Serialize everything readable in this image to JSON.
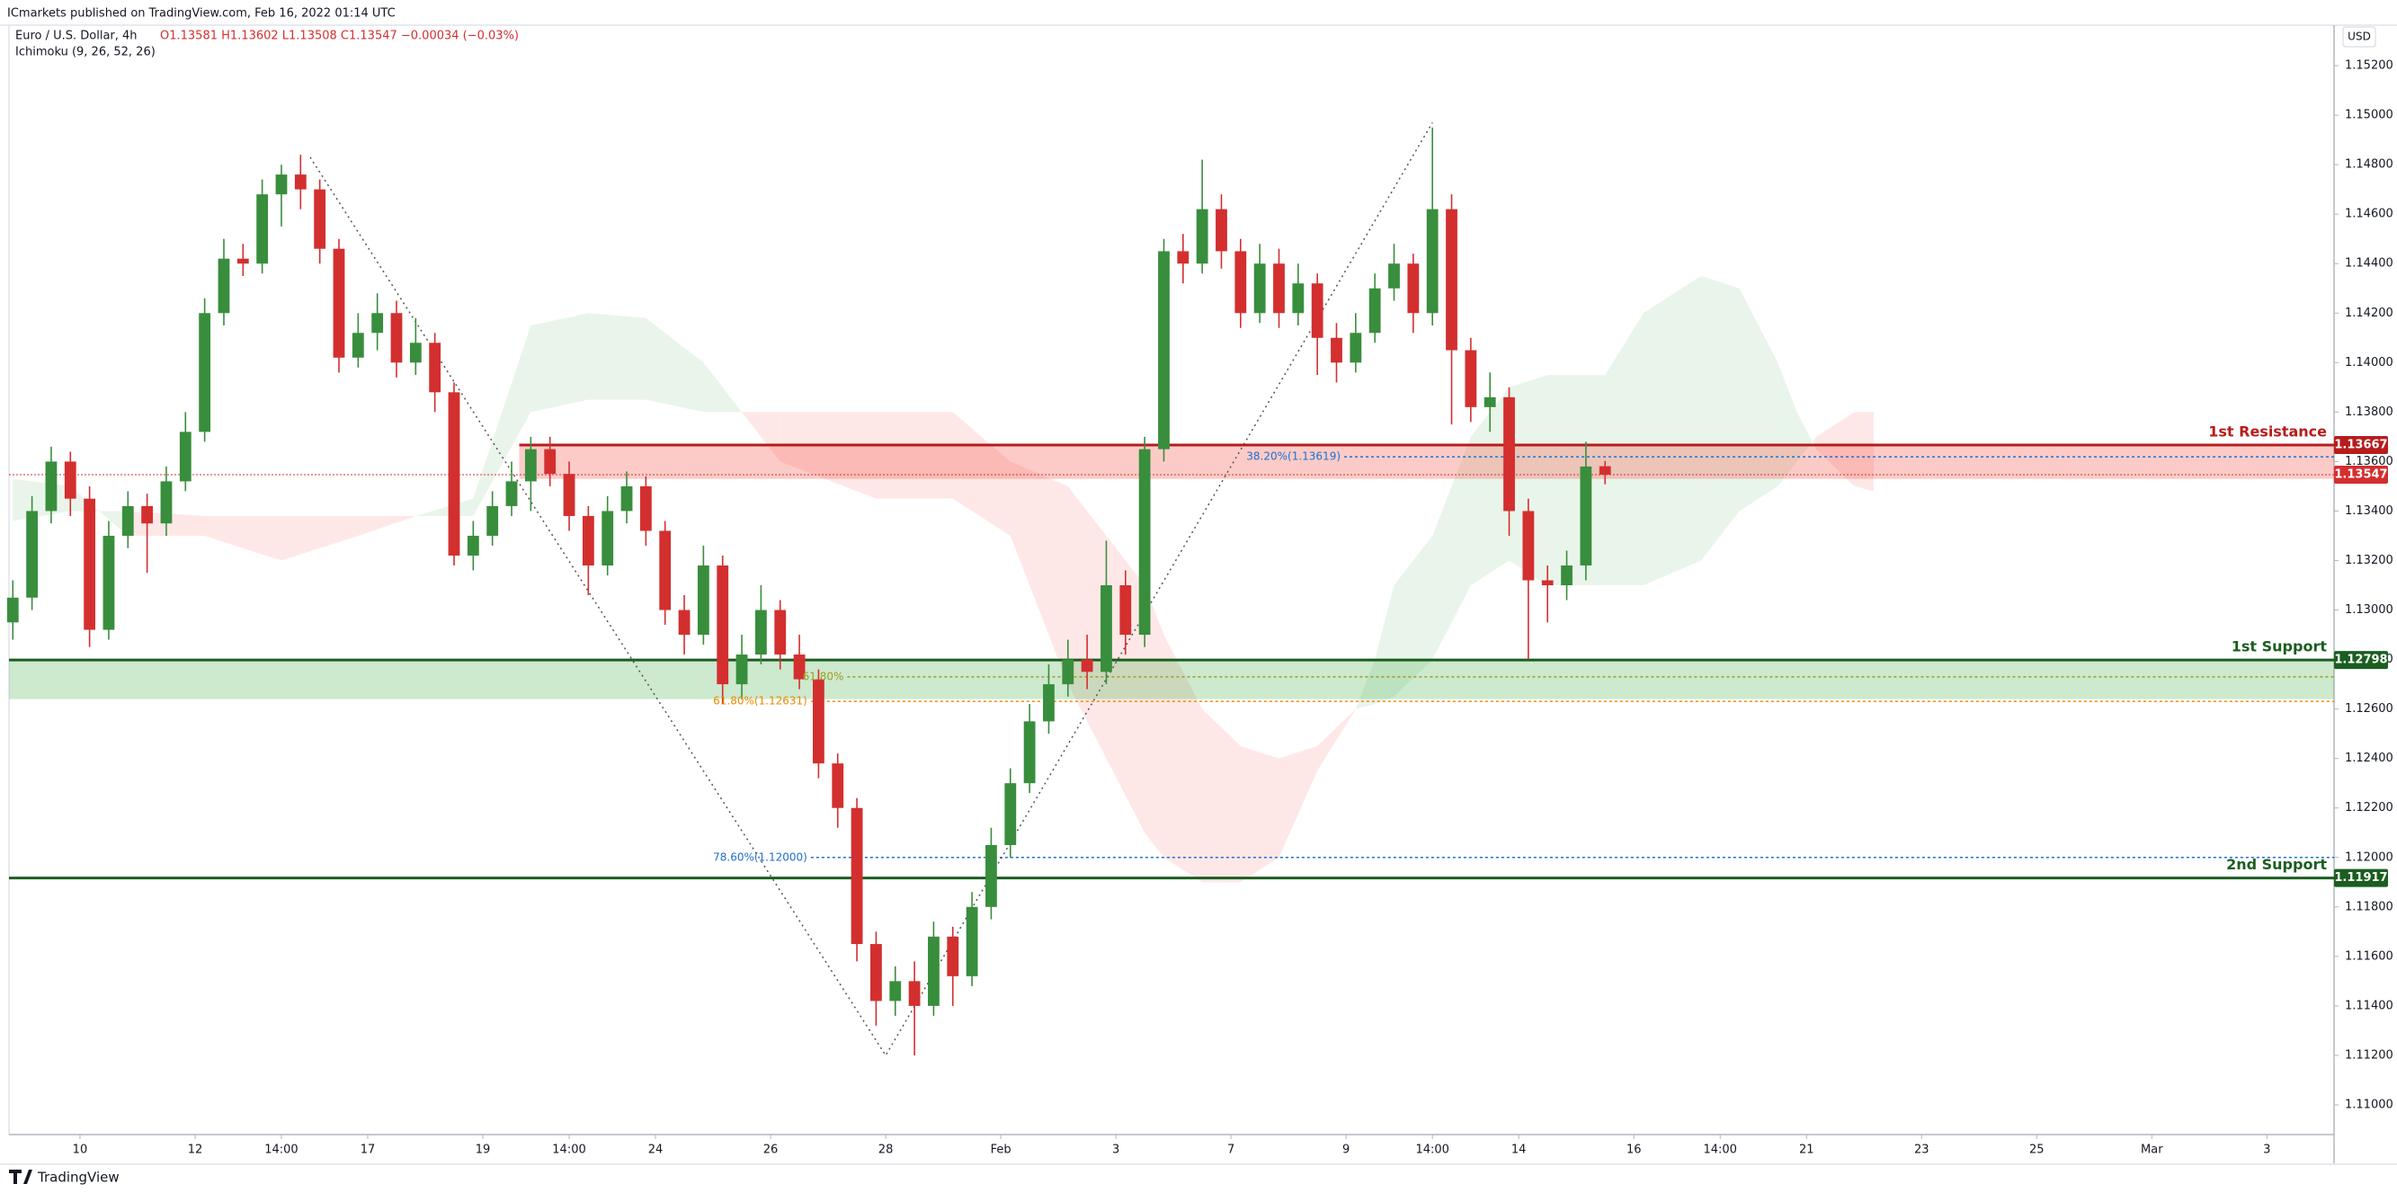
{
  "chart_data": {
    "type": "candlestick",
    "publisher": "ICmarkets published on TradingView.com, Feb 16, 2022 01:14 UTC",
    "symbol": "Euro / U.S. Dollar, 4h",
    "ohlc_text": "O1.13581  H1.13602  L1.13508  C1.13547  −0.00034 (−0.03%)",
    "indicator": "Ichimoku (9, 26, 52, 26)",
    "currency": "USD",
    "brand": "TradingView",
    "up_color": "#388e3c",
    "down_color": "#d32f2f",
    "open": [
      1.1295,
      1.1305,
      1.134,
      1.136,
      1.1345,
      1.1292,
      1.133,
      1.1342,
      1.1335,
      1.1352,
      1.1372,
      1.142,
      1.1442,
      1.144,
      1.1468,
      1.1476,
      1.147,
      1.1446,
      1.1402,
      1.1412,
      1.142,
      1.14,
      1.1408,
      1.1388,
      1.1322,
      1.133,
      1.1342,
      1.1352,
      1.1365,
      1.1355,
      1.1338,
      1.1318,
      1.134,
      1.135,
      1.1332,
      1.13,
      1.129,
      1.1318,
      1.127,
      1.1282,
      1.13,
      1.1282,
      1.1272,
      1.1238,
      1.122,
      1.1165,
      1.1142,
      1.115,
      1.114,
      1.1168,
      1.1152,
      1.118,
      1.1205,
      1.123,
      1.1255,
      1.127,
      1.128,
      1.1275,
      1.131,
      1.129,
      1.1365,
      1.1445,
      1.144,
      1.1462,
      1.1445,
      1.142,
      1.144,
      1.142,
      1.1432,
      1.141,
      1.14,
      1.1412,
      1.143,
      1.144,
      1.142,
      1.1462,
      1.1405,
      1.1382,
      1.1386,
      1.134,
      1.1312,
      1.131,
      1.1318,
      1.13581
    ],
    "high": [
      1.1312,
      1.1346,
      1.1366,
      1.1364,
      1.135,
      1.1336,
      1.1348,
      1.1347,
      1.1358,
      1.138,
      1.1426,
      1.145,
      1.1448,
      1.1474,
      1.148,
      1.1484,
      1.1474,
      1.145,
      1.142,
      1.1428,
      1.1425,
      1.1418,
      1.1412,
      1.1392,
      1.1336,
      1.1348,
      1.136,
      1.137,
      1.137,
      1.136,
      1.1342,
      1.1346,
      1.1356,
      1.1354,
      1.1336,
      1.1306,
      1.1326,
      1.1322,
      1.129,
      1.131,
      1.1304,
      1.129,
      1.1276,
      1.1242,
      1.1224,
      1.117,
      1.1156,
      1.1158,
      1.1174,
      1.1172,
      1.1186,
      1.1212,
      1.1236,
      1.1262,
      1.1278,
      1.1288,
      1.129,
      1.1328,
      1.1316,
      1.137,
      1.145,
      1.1452,
      1.1482,
      1.1468,
      1.145,
      1.1448,
      1.1446,
      1.144,
      1.1436,
      1.1416,
      1.142,
      1.1436,
      1.1448,
      1.1444,
      1.1495,
      1.1468,
      1.141,
      1.1396,
      1.139,
      1.1345,
      1.1318,
      1.1324,
      1.1368,
      1.13602
    ],
    "low": [
      1.1288,
      1.13,
      1.1335,
      1.1338,
      1.1285,
      1.1288,
      1.1325,
      1.1315,
      1.133,
      1.1348,
      1.1368,
      1.1415,
      1.1435,
      1.1436,
      1.1455,
      1.1462,
      1.144,
      1.1396,
      1.1398,
      1.1405,
      1.1394,
      1.1395,
      1.138,
      1.1318,
      1.1316,
      1.1326,
      1.1338,
      1.134,
      1.135,
      1.1332,
      1.1306,
      1.1314,
      1.1335,
      1.1326,
      1.1294,
      1.1282,
      1.1286,
      1.1262,
      1.1264,
      1.1278,
      1.1276,
      1.1268,
      1.1232,
      1.1212,
      1.1158,
      1.1132,
      1.1136,
      1.112,
      1.1136,
      1.114,
      1.1148,
      1.1175,
      1.12,
      1.1226,
      1.125,
      1.1265,
      1.1268,
      1.127,
      1.1282,
      1.1285,
      1.136,
      1.1432,
      1.1436,
      1.1438,
      1.1414,
      1.1416,
      1.1414,
      1.1415,
      1.1395,
      1.1392,
      1.1396,
      1.1408,
      1.1425,
      1.1412,
      1.1415,
      1.1375,
      1.1376,
      1.1372,
      1.133,
      1.128,
      1.1295,
      1.1304,
      1.1312,
      1.13508
    ],
    "close": [
      1.1305,
      1.134,
      1.136,
      1.1345,
      1.1292,
      1.133,
      1.1342,
      1.1335,
      1.1352,
      1.1372,
      1.142,
      1.1442,
      1.144,
      1.1468,
      1.1476,
      1.147,
      1.1446,
      1.1402,
      1.1412,
      1.142,
      1.14,
      1.1408,
      1.1388,
      1.1322,
      1.133,
      1.1342,
      1.1352,
      1.1365,
      1.1355,
      1.1338,
      1.1318,
      1.134,
      1.135,
      1.1332,
      1.13,
      1.129,
      1.1318,
      1.127,
      1.1282,
      1.13,
      1.1282,
      1.1272,
      1.1238,
      1.122,
      1.1165,
      1.1142,
      1.115,
      1.114,
      1.1168,
      1.1152,
      1.118,
      1.1205,
      1.123,
      1.1255,
      1.127,
      1.128,
      1.1275,
      1.131,
      1.129,
      1.1365,
      1.1445,
      1.144,
      1.1462,
      1.1445,
      1.142,
      1.144,
      1.142,
      1.1432,
      1.141,
      1.14,
      1.1412,
      1.143,
      1.144,
      1.142,
      1.1462,
      1.1405,
      1.1382,
      1.1386,
      1.134,
      1.1312,
      1.131,
      1.1318,
      1.1358,
      1.13547
    ],
    "cloud": {
      "x": [
        0,
        3,
        6,
        10,
        14,
        18,
        21,
        24,
        27,
        30,
        33,
        36,
        38,
        40,
        45,
        49,
        52,
        55,
        57,
        59,
        60,
        62,
        64,
        66,
        68,
        70,
        71,
        72,
        74,
        76,
        78,
        80,
        83,
        85,
        88,
        90,
        92,
        93,
        94,
        96,
        97
      ],
      "span_a": [
        1.1353,
        1.135,
        1.133,
        1.133,
        1.132,
        1.133,
        1.1338,
        1.1345,
        1.1415,
        1.142,
        1.1418,
        1.14,
        1.138,
        1.136,
        1.1345,
        1.1345,
        1.133,
        1.127,
        1.124,
        1.121,
        1.12,
        1.119,
        1.119,
        1.12,
        1.1235,
        1.126,
        1.128,
        1.131,
        1.133,
        1.137,
        1.139,
        1.1395,
        1.1395,
        1.142,
        1.1435,
        1.143,
        1.14,
        1.138,
        1.1365,
        1.135,
        1.1348
      ],
      "span_b": [
        1.1336,
        1.134,
        1.134,
        1.1338,
        1.1338,
        1.1338,
        1.1338,
        1.1338,
        1.138,
        1.1385,
        1.1385,
        1.138,
        1.138,
        1.138,
        1.138,
        1.138,
        1.136,
        1.135,
        1.133,
        1.131,
        1.129,
        1.126,
        1.1245,
        1.124,
        1.1245,
        1.126,
        1.1262,
        1.1265,
        1.128,
        1.131,
        1.132,
        1.131,
        1.131,
        1.131,
        1.132,
        1.134,
        1.135,
        1.136,
        1.137,
        1.138,
        1.138
      ]
    },
    "trendline": {
      "x": [
        15.5,
        45.5,
        74
      ],
      "y": [
        1.1483,
        1.112,
        1.1497
      ]
    },
    "zones": [
      {
        "top": 1.13667,
        "bottom": 1.1353,
        "start": 26.4,
        "color": "#f44336"
      },
      {
        "top": 1.12798,
        "bottom": 1.1264,
        "color": "#4caf50"
      }
    ],
    "levels": [
      {
        "name": "1st Resistance",
        "value": 1.13667,
        "start": 26.4,
        "color": "#b71c1c"
      },
      {
        "name": "1st Support",
        "value": 1.12798,
        "color": "#1b5e20"
      },
      {
        "name": "2nd Support",
        "value": 1.11917,
        "color": "#1b5e20"
      }
    ],
    "fibs": [
      {
        "label": "38.20%(1.13619)",
        "value": 1.13619,
        "start": 69.4,
        "color": "#1e6fd0"
      },
      {
        "label": "61.80%",
        "value": 1.1273,
        "start": 43.5,
        "color": "#9e9d24"
      },
      {
        "label": "61.80%(1.12631)",
        "value": 1.12631,
        "start": 41.6,
        "color": "#ef8a00"
      },
      {
        "label": "78.60%(1.12000)",
        "value": 1.12,
        "start": 41.6,
        "color": "#1e6fd0"
      }
    ],
    "xlim": [
      -0.2,
      121
    ],
    "ylim": [
      1.1088,
      1.1536
    ],
    "xticks": [
      {
        "value": 3.5,
        "label": "10"
      },
      {
        "value": 9.5,
        "label": "12"
      },
      {
        "value": 14,
        "label": "14:00"
      },
      {
        "value": 18.5,
        "label": "17"
      },
      {
        "value": 24.5,
        "label": "19"
      },
      {
        "value": 29,
        "label": "14:00"
      },
      {
        "value": 33.5,
        "label": "24"
      },
      {
        "value": 39.5,
        "label": "26"
      },
      {
        "value": 45.5,
        "label": "28"
      },
      {
        "value": 51.5,
        "label": "Feb"
      },
      {
        "value": 57.5,
        "label": "3"
      },
      {
        "value": 63.5,
        "label": "7"
      },
      {
        "value": 69.5,
        "label": "9"
      },
      {
        "value": 74,
        "label": "14:00"
      },
      {
        "value": 78.5,
        "label": "14"
      },
      {
        "value": 84.5,
        "label": "16"
      },
      {
        "value": 89,
        "label": "14:00"
      },
      {
        "value": 93.5,
        "label": "21"
      },
      {
        "value": 99.5,
        "label": "23"
      },
      {
        "value": 105.5,
        "label": "25"
      },
      {
        "value": 111.5,
        "label": "Mar"
      },
      {
        "value": 117.5,
        "label": "3"
      }
    ],
    "yticks": [
      {
        "value": 1.11,
        "label": "1.11000"
      },
      {
        "value": 1.112,
        "label": "1.11200"
      },
      {
        "value": 1.114,
        "label": "1.11400"
      },
      {
        "value": 1.116,
        "label": "1.11600"
      },
      {
        "value": 1.118,
        "label": "1.11800"
      },
      {
        "value": 1.12,
        "label": "1.12000"
      },
      {
        "value": 1.122,
        "label": "1.12200"
      },
      {
        "value": 1.124,
        "label": "1.12400"
      },
      {
        "value": 1.126,
        "label": "1.12600"
      },
      {
        "value": 1.128,
        "label": "1.12800"
      },
      {
        "value": 1.13,
        "label": "1.13000"
      },
      {
        "value": 1.132,
        "label": "1.13200"
      },
      {
        "value": 1.134,
        "label": "1.13400"
      },
      {
        "value": 1.136,
        "label": "1.13600"
      },
      {
        "value": 1.138,
        "label": "1.13800"
      },
      {
        "value": 1.14,
        "label": "1.14000"
      },
      {
        "value": 1.142,
        "label": "1.14200"
      },
      {
        "value": 1.144,
        "label": "1.14400"
      },
      {
        "value": 1.146,
        "label": "1.14600"
      },
      {
        "value": 1.148,
        "label": "1.14800"
      },
      {
        "value": 1.15,
        "label": "1.15000"
      },
      {
        "value": 1.152,
        "label": "1.15200"
      }
    ],
    "grid": false
  }
}
